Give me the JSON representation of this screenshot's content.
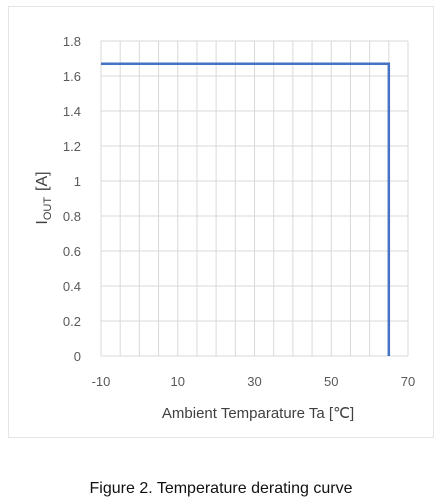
{
  "chart_data": {
    "type": "line",
    "xlabel": "Ambient Temparature Ta [℃]",
    "ylabel_main": "I",
    "ylabel_sub": "OUT",
    "ylabel_unit": "[A]",
    "xlim": [
      -10,
      70
    ],
    "ylim": [
      0,
      1.8
    ],
    "x_ticks": [
      -10,
      10,
      30,
      50,
      70
    ],
    "x_tick_labels": [
      "-10",
      "10",
      "30",
      "50",
      "70"
    ],
    "y_ticks": [
      0,
      0.2,
      0.4,
      0.6,
      0.8,
      1,
      1.2,
      1.4,
      1.6,
      1.8
    ],
    "y_tick_labels": [
      "0",
      "0.2",
      "0.4",
      "0.6",
      "0.8",
      "1",
      "1.2",
      "1.4",
      "1.6",
      "1.8"
    ],
    "minor_x_grid_step": 5,
    "grid": true,
    "series": [
      {
        "x": [
          -10,
          65,
          65
        ],
        "y": [
          1.67,
          1.67,
          0
        ]
      }
    ],
    "colors": {
      "line": "#4472c4",
      "grid": "#d9d9d9",
      "text": "#595959"
    }
  },
  "caption": "Figure 2. Temperature derating curve"
}
